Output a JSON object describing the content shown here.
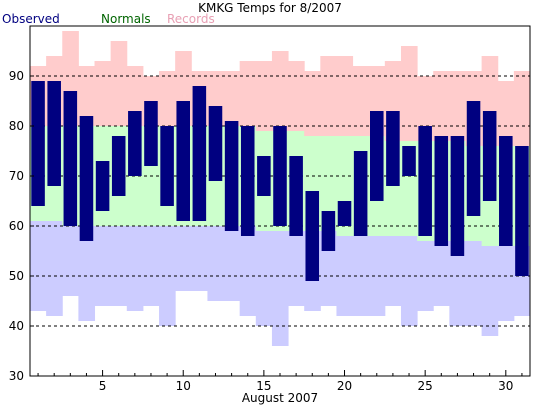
{
  "chart_data": {
    "type": "bar",
    "title": "KMKG Temps for 8/2007",
    "xlabel": "August 2007",
    "ylabel": "",
    "ylim": [
      30,
      100
    ],
    "xlim": [
      0.5,
      31.5
    ],
    "x_ticks": [
      5,
      10,
      15,
      20,
      25,
      30
    ],
    "y_ticks": [
      30,
      40,
      50,
      60,
      70,
      80,
      90
    ],
    "grid": "horizontal dashed at 40, 50, 60, 70, 80, 90",
    "legend": {
      "position": "top-left",
      "items": [
        {
          "name": "Observed",
          "color": "#000080"
        },
        {
          "name": "Normals",
          "color": "#006400"
        },
        {
          "name": "Records",
          "color": "#e8a0b4"
        }
      ]
    },
    "colors": {
      "observed": "#000080",
      "normals": "#ccffcc",
      "record_high_band": "#ffcccc",
      "record_low_band": "#ccccff"
    },
    "series": [
      {
        "name": "Observed",
        "days": [
          1,
          2,
          3,
          4,
          5,
          6,
          7,
          8,
          9,
          10,
          11,
          12,
          13,
          14,
          15,
          16,
          17,
          18,
          19,
          20,
          21,
          22,
          23,
          24,
          25,
          26,
          27,
          28,
          29,
          30,
          31
        ],
        "high": [
          89,
          89,
          87,
          82,
          73,
          78,
          83,
          85,
          80,
          85,
          88,
          84,
          81,
          80,
          74,
          80,
          74,
          67,
          63,
          65,
          75,
          83,
          83,
          76,
          80,
          78,
          78,
          85,
          83,
          78,
          76
        ],
        "low": [
          64,
          68,
          60,
          57,
          63,
          66,
          70,
          72,
          64,
          61,
          61,
          69,
          59,
          58,
          66,
          60,
          58,
          49,
          55,
          60,
          58,
          65,
          68,
          70,
          58,
          56,
          54,
          62,
          65,
          56,
          50
        ]
      },
      {
        "name": "Normals",
        "days": [
          1,
          2,
          3,
          4,
          5,
          6,
          7,
          8,
          9,
          10,
          11,
          12,
          13,
          14,
          15,
          16,
          17,
          18,
          19,
          20,
          21,
          22,
          23,
          24,
          25,
          26,
          27,
          28,
          29,
          30,
          31
        ],
        "high": [
          80,
          80,
          80,
          80,
          80,
          80,
          80,
          80,
          80,
          80,
          80,
          80,
          80,
          80,
          79,
          79,
          79,
          78,
          78,
          78,
          78,
          78,
          77,
          77,
          77,
          77,
          77,
          76,
          76,
          76,
          76
        ],
        "low": [
          61,
          61,
          60,
          60,
          60,
          60,
          60,
          60,
          60,
          60,
          60,
          60,
          60,
          60,
          59,
          59,
          59,
          59,
          59,
          58,
          58,
          58,
          58,
          58,
          57,
          57,
          57,
          57,
          56,
          56,
          56
        ]
      },
      {
        "name": "Records",
        "days": [
          1,
          2,
          3,
          4,
          5,
          6,
          7,
          8,
          9,
          10,
          11,
          12,
          13,
          14,
          15,
          16,
          17,
          18,
          19,
          20,
          21,
          22,
          23,
          24,
          25,
          26,
          27,
          28,
          29,
          30,
          31
        ],
        "high": [
          92,
          94,
          99,
          92,
          93,
          97,
          92,
          90,
          91,
          95,
          91,
          91,
          91,
          93,
          93,
          95,
          93,
          91,
          94,
          94,
          92,
          92,
          93,
          96,
          90,
          91,
          91,
          91,
          94,
          89,
          91
        ],
        "low": [
          43,
          42,
          46,
          41,
          44,
          44,
          43,
          44,
          40,
          47,
          47,
          45,
          45,
          42,
          40,
          36,
          44,
          43,
          44,
          42,
          42,
          42,
          44,
          40,
          43,
          44,
          40,
          40,
          38,
          41,
          42
        ]
      }
    ]
  }
}
